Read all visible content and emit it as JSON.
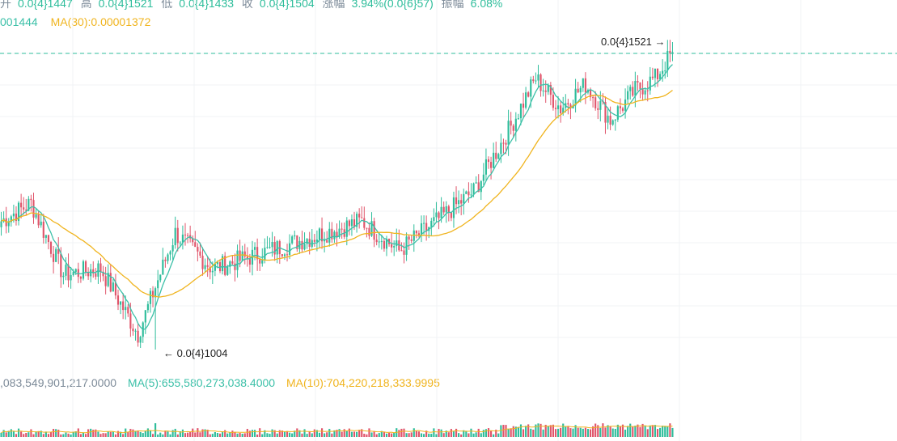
{
  "ohlc_legend": {
    "open_label": "开",
    "open": "0.0{4}1447",
    "high_label": "高",
    "high": "0.0{4}1521",
    "low_label": "低",
    "low": "0.0{4}1433",
    "close_label": "收",
    "close": "0.0{4}1504",
    "change_label": "涨幅",
    "change": "3.94%(0.0{6}57)",
    "amplitude_label": "振幅",
    "amplitude": "6.08%"
  },
  "ma_legend": {
    "ma_short": "001444",
    "ma30": "MA(30):0.00001372"
  },
  "volume_legend": {
    "volume": ",083,549,901,217.0000",
    "ma5": "MA(5):655,580,273,038.4000",
    "ma10": "MA(10):704,220,218,333.9995"
  },
  "markers": {
    "high_label": "0.0{4}1521",
    "low_label": "0.0{4}1004"
  },
  "colors": {
    "up": "#2ebd9b",
    "down": "#e0556b",
    "ma_short": "#3cc0a8",
    "ma30": "#f0b41e",
    "dashed_line": "#2ebd9b"
  },
  "chart_data": {
    "type": "candlestick",
    "price_unit": "0.0{4} = ×1e-5",
    "price_range_visible": [
      1.0,
      1.55
    ],
    "current_price": 1.504,
    "period_high": 1.521,
    "period_low": 1.004,
    "candles_approx_count": 150,
    "trend_keypoints": [
      {
        "idx": 0,
        "close": 1.22
      },
      {
        "idx": 12,
        "close": 1.25
      },
      {
        "idx": 25,
        "close": 1.13
      },
      {
        "idx": 40,
        "close": 1.14
      },
      {
        "idx": 55,
        "close": 1.03
      },
      {
        "idx": 70,
        "close": 1.2
      },
      {
        "idx": 85,
        "close": 1.14
      },
      {
        "idx": 100,
        "close": 1.16
      },
      {
        "idx": 115,
        "close": 1.18
      },
      {
        "idx": 130,
        "close": 1.2
      },
      {
        "idx": 145,
        "close": 1.22
      },
      {
        "idx": 160,
        "close": 1.17
      },
      {
        "idx": 175,
        "close": 1.22
      },
      {
        "idx": 190,
        "close": 1.27
      },
      {
        "idx": 205,
        "close": 1.38
      },
      {
        "idx": 215,
        "close": 1.46
      },
      {
        "idx": 225,
        "close": 1.41
      },
      {
        "idx": 235,
        "close": 1.45
      },
      {
        "idx": 245,
        "close": 1.39
      },
      {
        "idx": 255,
        "close": 1.44
      },
      {
        "idx": 263,
        "close": 1.46
      },
      {
        "idx": 270,
        "close": 1.504
      }
    ]
  }
}
